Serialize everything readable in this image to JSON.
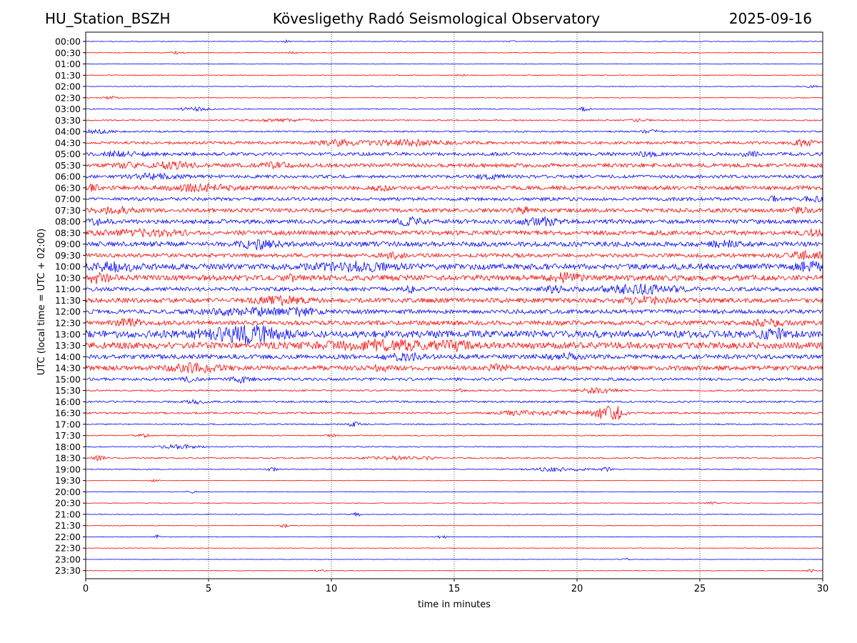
{
  "header": {
    "station": "HU_Station_BSZH",
    "observatory": "Kövesligethy Radó Seismological Observatory",
    "date": "2025-09-16"
  },
  "chart_data": {
    "type": "line",
    "title": "Kövesligethy Radó Seismological Observatory",
    "xlabel": "time in minutes",
    "ylabel": "UTC (local time = UTC + 02:00)",
    "xlim": [
      0,
      30
    ],
    "x_ticks": [
      0,
      5,
      10,
      15,
      20,
      25,
      30
    ],
    "grid": "vertical dotted at 5-minute ticks",
    "colors": {
      "even_row": "#0000ff",
      "odd_row": "#ff0000"
    },
    "rows": [
      {
        "label": "00:00",
        "noise": 0.06,
        "events": [
          [
            8.2,
            0.2,
            0.2
          ],
          [
            17.4,
            0.15,
            0.1
          ]
        ]
      },
      {
        "label": "00:30",
        "noise": 0.06,
        "events": [
          [
            3.7,
            0.3,
            0.2
          ],
          [
            8.4,
            0.2,
            0.15
          ]
        ]
      },
      {
        "label": "01:00",
        "noise": 0.05,
        "events": []
      },
      {
        "label": "01:30",
        "noise": 0.06,
        "events": [
          [
            15.3,
            0.2,
            0.15
          ]
        ]
      },
      {
        "label": "02:00",
        "noise": 0.06,
        "events": [
          [
            29.5,
            0.3,
            0.15
          ]
        ]
      },
      {
        "label": "02:30",
        "noise": 0.06,
        "events": [
          [
            1.0,
            0.3,
            0.2
          ]
        ]
      },
      {
        "label": "03:00",
        "noise": 0.08,
        "events": [
          [
            4.5,
            0.6,
            0.3
          ],
          [
            20.3,
            0.2,
            0.35
          ]
        ]
      },
      {
        "label": "03:30",
        "noise": 0.1,
        "events": [
          [
            22.5,
            0.4,
            0.2
          ],
          [
            8.0,
            1.5,
            0.15
          ]
        ]
      },
      {
        "label": "04:00",
        "noise": 0.12,
        "events": [
          [
            0.5,
            0.6,
            0.25
          ],
          [
            23.0,
            0.4,
            0.2
          ]
        ]
      },
      {
        "label": "04:30",
        "noise": 0.22,
        "events": [
          [
            10.3,
            0.8,
            0.4
          ],
          [
            13.0,
            1.5,
            0.35
          ],
          [
            29.3,
            0.5,
            0.4
          ]
        ]
      },
      {
        "label": "05:00",
        "noise": 0.25,
        "events": [
          [
            1.5,
            1.0,
            0.3
          ],
          [
            22.9,
            0.3,
            0.35
          ],
          [
            27.0,
            0.4,
            0.35
          ]
        ]
      },
      {
        "label": "05:30",
        "noise": 0.3,
        "events": [
          [
            1.7,
            0.3,
            0.5
          ],
          [
            3.5,
            0.8,
            0.4
          ],
          [
            7.8,
            0.5,
            0.35
          ]
        ]
      },
      {
        "label": "06:00",
        "noise": 0.25,
        "events": [
          [
            2.8,
            1.0,
            0.35
          ],
          [
            16.5,
            0.5,
            0.35
          ]
        ]
      },
      {
        "label": "06:30",
        "noise": 0.3,
        "events": [
          [
            4.7,
            1.2,
            0.45
          ],
          [
            12.0,
            0.3,
            0.35
          ],
          [
            0.3,
            0.3,
            0.35
          ]
        ]
      },
      {
        "label": "07:00",
        "noise": 0.25,
        "events": [
          [
            29.8,
            0.5,
            0.45
          ],
          [
            28.0,
            0.2,
            0.35
          ]
        ]
      },
      {
        "label": "07:30",
        "noise": 0.3,
        "events": [
          [
            1.2,
            0.8,
            0.4
          ],
          [
            17.8,
            0.4,
            0.35
          ],
          [
            29.0,
            0.5,
            0.3
          ]
        ]
      },
      {
        "label": "08:00",
        "noise": 0.32,
        "events": [
          [
            13.2,
            0.5,
            0.5
          ],
          [
            18.5,
            0.8,
            0.45
          ],
          [
            0.5,
            0.5,
            0.4
          ]
        ]
      },
      {
        "label": "08:30",
        "noise": 0.35,
        "events": [
          [
            2.5,
            1.5,
            0.35
          ],
          [
            29.5,
            0.5,
            0.35
          ]
        ]
      },
      {
        "label": "09:00",
        "noise": 0.38,
        "events": [
          [
            7.0,
            0.8,
            0.5
          ],
          [
            26.0,
            0.5,
            0.35
          ]
        ]
      },
      {
        "label": "09:30",
        "noise": 0.3,
        "events": [
          [
            12.5,
            0.5,
            0.35
          ],
          [
            29.3,
            0.8,
            0.45
          ]
        ]
      },
      {
        "label": "10:00",
        "noise": 0.45,
        "events": [
          [
            1.2,
            0.8,
            0.6
          ],
          [
            11.0,
            1.5,
            0.5
          ],
          [
            29.5,
            0.5,
            0.55
          ]
        ]
      },
      {
        "label": "10:30",
        "noise": 0.42,
        "events": [
          [
            0.5,
            0.5,
            0.55
          ],
          [
            8.3,
            0.3,
            0.5
          ],
          [
            19.5,
            0.6,
            0.5
          ]
        ]
      },
      {
        "label": "11:00",
        "noise": 0.3,
        "events": [
          [
            22.5,
            1.6,
            0.6
          ],
          [
            13.2,
            0.2,
            0.45
          ],
          [
            19.0,
            0.4,
            0.4
          ]
        ]
      },
      {
        "label": "11:30",
        "noise": 0.35,
        "events": [
          [
            7.8,
            1.0,
            0.5
          ],
          [
            22.8,
            0.8,
            0.5
          ]
        ]
      },
      {
        "label": "12:00",
        "noise": 0.32,
        "events": [
          [
            6.5,
            1.5,
            0.5
          ],
          [
            8.8,
            0.6,
            0.5
          ]
        ]
      },
      {
        "label": "12:30",
        "noise": 0.35,
        "events": [
          [
            1.8,
            0.5,
            0.45
          ],
          [
            28.0,
            0.8,
            0.35
          ]
        ]
      },
      {
        "label": "13:00",
        "noise": 0.55,
        "events": [
          [
            5.8,
            1.5,
            0.7
          ],
          [
            7.0,
            1.0,
            0.7
          ],
          [
            28.0,
            0.5,
            0.5
          ]
        ]
      },
      {
        "label": "13:30",
        "noise": 0.5,
        "events": [
          [
            12.0,
            2.0,
            0.6
          ],
          [
            15.0,
            0.5,
            0.5
          ]
        ]
      },
      {
        "label": "14:00",
        "noise": 0.35,
        "events": [
          [
            13.0,
            0.8,
            0.4
          ],
          [
            19.5,
            0.5,
            0.4
          ]
        ]
      },
      {
        "label": "14:30",
        "noise": 0.35,
        "events": [
          [
            4.5,
            1.0,
            0.55
          ],
          [
            12.0,
            0.3,
            0.45
          ],
          [
            16.8,
            0.4,
            0.4
          ]
        ]
      },
      {
        "label": "15:00",
        "noise": 0.22,
        "events": [
          [
            6.3,
            0.4,
            0.45
          ],
          [
            4.2,
            0.3,
            0.3
          ]
        ]
      },
      {
        "label": "15:30",
        "noise": 0.12,
        "events": [
          [
            20.8,
            0.8,
            0.35
          ],
          [
            15.3,
            0.2,
            0.2
          ]
        ]
      },
      {
        "label": "16:00",
        "noise": 0.14,
        "events": [
          [
            4.5,
            0.4,
            0.25
          ]
        ]
      },
      {
        "label": "16:30",
        "noise": 0.14,
        "events": [
          [
            21.1,
            0.4,
            1.0
          ],
          [
            21.7,
            0.3,
            0.8
          ],
          [
            19.5,
            1.5,
            0.3
          ],
          [
            17.5,
            0.8,
            0.25
          ]
        ]
      },
      {
        "label": "17:00",
        "noise": 0.1,
        "events": [
          [
            10.9,
            0.3,
            0.3
          ]
        ]
      },
      {
        "label": "17:30",
        "noise": 0.08,
        "events": [
          [
            2.3,
            0.3,
            0.25
          ],
          [
            10.0,
            0.2,
            0.2
          ]
        ]
      },
      {
        "label": "18:00",
        "noise": 0.08,
        "events": [
          [
            3.8,
            0.8,
            0.3
          ]
        ]
      },
      {
        "label": "18:30",
        "noise": 0.1,
        "events": [
          [
            0.5,
            0.3,
            0.3
          ],
          [
            12.5,
            1.2,
            0.25
          ],
          [
            14.0,
            0.2,
            0.25
          ]
        ]
      },
      {
        "label": "19:00",
        "noise": 0.07,
        "events": [
          [
            7.6,
            0.2,
            0.3
          ],
          [
            19.2,
            1.2,
            0.3
          ],
          [
            21.2,
            0.2,
            0.3
          ]
        ]
      },
      {
        "label": "19:30",
        "noise": 0.05,
        "events": [
          [
            2.8,
            0.2,
            0.15
          ]
        ]
      },
      {
        "label": "20:00",
        "noise": 0.05,
        "events": [
          [
            4.3,
            0.2,
            0.2
          ]
        ]
      },
      {
        "label": "20:30",
        "noise": 0.05,
        "events": [
          [
            25.5,
            0.3,
            0.15
          ]
        ]
      },
      {
        "label": "21:00",
        "noise": 0.06,
        "events": [
          [
            11.0,
            0.2,
            0.35
          ]
        ]
      },
      {
        "label": "21:30",
        "noise": 0.05,
        "events": [
          [
            8.1,
            0.2,
            0.3
          ]
        ]
      },
      {
        "label": "22:00",
        "noise": 0.05,
        "events": [
          [
            2.9,
            0.1,
            0.3
          ],
          [
            14.5,
            0.2,
            0.2
          ]
        ]
      },
      {
        "label": "22:30",
        "noise": 0.04,
        "events": []
      },
      {
        "label": "23:00",
        "noise": 0.04,
        "events": [
          [
            22.0,
            0.2,
            0.15
          ]
        ]
      },
      {
        "label": "23:30",
        "noise": 0.05,
        "events": [
          [
            29.5,
            0.2,
            0.2
          ],
          [
            9.5,
            0.2,
            0.15
          ]
        ]
      }
    ]
  }
}
